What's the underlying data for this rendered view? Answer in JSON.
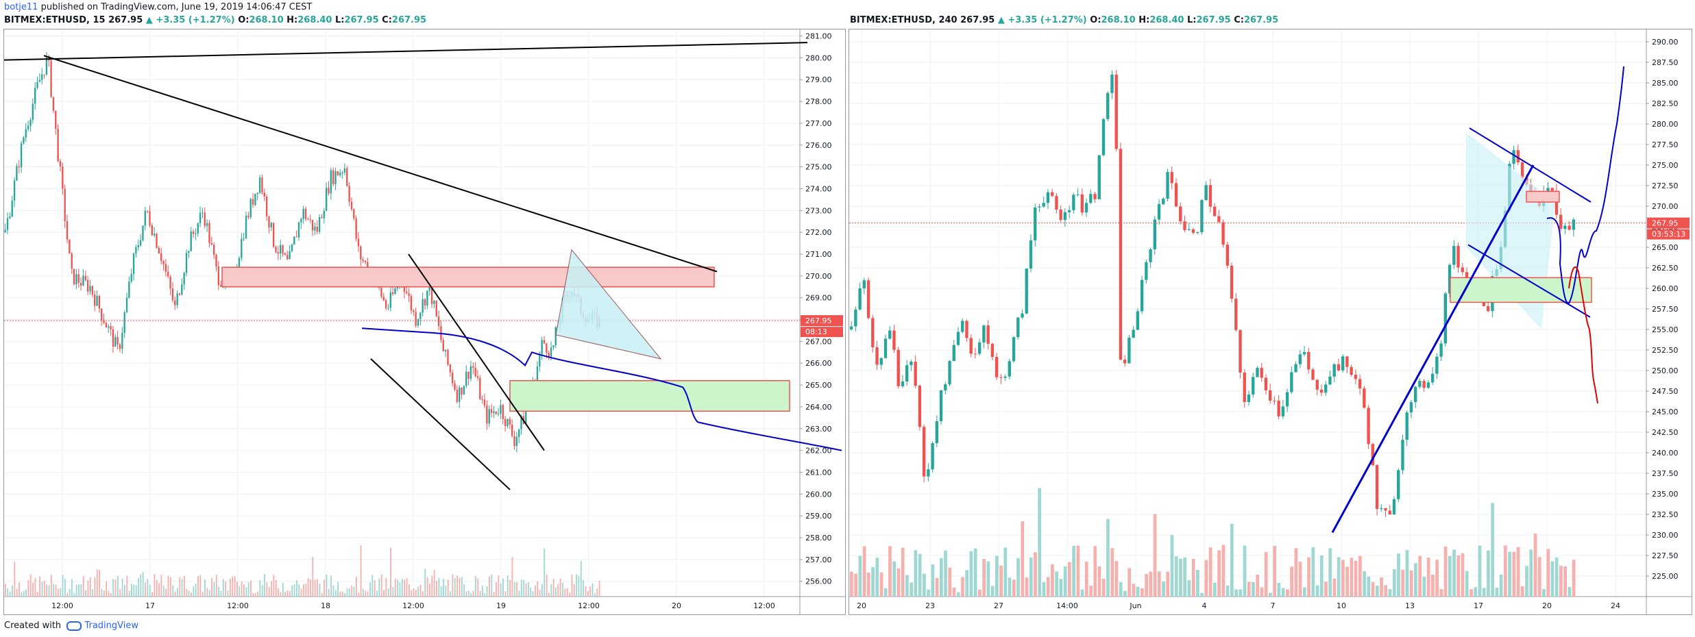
{
  "header": {
    "author": "botje11",
    "published_text": " published on TradingView.com, June 19, 2019 14:06:47 CEST"
  },
  "footer": {
    "created_with": "Created with",
    "brand": "TradingView"
  },
  "colors": {
    "up": "#26a69a",
    "down": "#ef5350",
    "trend": "#000000",
    "path_blue": "#0000cc",
    "path_red": "#e00000",
    "resist_fill": "#f8c9c9",
    "support_fill": "#ccf5cc",
    "triangle_fill": "#c8f0f6",
    "price_tag": "#ef5350"
  },
  "legend_left": {
    "symbol": "BITMEX:ETHUSD, 15",
    "last": "267.95",
    "arrow": "▲",
    "change": "+3.35 (+1.27%)",
    "o_label": "O:",
    "o": "268.10",
    "h_label": "H:",
    "h": "268.40",
    "l_label": "L:",
    "l": "267.95",
    "c_label": "C:",
    "c": "267.95"
  },
  "legend_right": {
    "symbol": "BITMEX:ETHUSD, 240",
    "last": "267.95",
    "arrow": "▲",
    "change": "+3.35 (+1.27%)",
    "o_label": "O:",
    "o": "268.10",
    "h_label": "H:",
    "h": "268.40",
    "l_label": "L:",
    "l": "267.95",
    "c_label": "C:",
    "c": "267.95"
  },
  "chart_data": [
    {
      "type": "candlestick",
      "symbol": "BITMEX:ETHUSD",
      "interval": "15",
      "ylim": [
        255.3,
        281.3
      ],
      "y_ticks": [
        "256.00",
        "257.00",
        "258.00",
        "259.00",
        "260.00",
        "261.00",
        "262.00",
        "263.00",
        "264.00",
        "265.00",
        "266.00",
        "267.00",
        "268.00",
        "269.00",
        "270.00",
        "271.00",
        "272.00",
        "273.00",
        "274.00",
        "275.00",
        "276.00",
        "277.00",
        "278.00",
        "279.00",
        "280.00",
        "281.00"
      ],
      "x_ticks": [
        "12:00",
        "17",
        "12:00",
        "18",
        "12:00",
        "19",
        "12:00",
        "20",
        "12:00"
      ],
      "last_price": "267.95",
      "countdown": "08:13",
      "price_path": [
        [
          0,
          272.0
        ],
        [
          8,
          276.5
        ],
        [
          14,
          278.8
        ],
        [
          18,
          280.0
        ],
        [
          22,
          276.0
        ],
        [
          28,
          270.0
        ],
        [
          36,
          269.5
        ],
        [
          42,
          268.0
        ],
        [
          48,
          266.5
        ],
        [
          54,
          270.5
        ],
        [
          60,
          273.0
        ],
        [
          66,
          271.0
        ],
        [
          72,
          268.5
        ],
        [
          78,
          271.5
        ],
        [
          84,
          273.0
        ],
        [
          90,
          270.0
        ],
        [
          96,
          269.5
        ],
        [
          102,
          272.5
        ],
        [
          108,
          274.5
        ],
        [
          114,
          271.5
        ],
        [
          120,
          270.5
        ],
        [
          126,
          273.0
        ],
        [
          132,
          272.0
        ],
        [
          138,
          274.5
        ],
        [
          144,
          275.0
        ],
        [
          150,
          271.0
        ],
        [
          156,
          270.0
        ],
        [
          162,
          268.5
        ],
        [
          168,
          270.0
        ],
        [
          174,
          268.0
        ],
        [
          180,
          269.5
        ],
        [
          186,
          266.5
        ],
        [
          192,
          264.5
        ],
        [
          198,
          266.0
        ],
        [
          204,
          263.5
        ],
        [
          210,
          264.0
        ],
        [
          216,
          262.5
        ],
        [
          220,
          263.5
        ],
        [
          224,
          265.0
        ],
        [
          228,
          267.0
        ],
        [
          232,
          266.5
        ],
        [
          236,
          268.5
        ],
        [
          240,
          269.5
        ],
        [
          244,
          268.5
        ],
        [
          248,
          268.0
        ],
        [
          252,
          267.9
        ]
      ],
      "volume_profile": "low bars along bottom, spike near 12:00 of day 16",
      "annotations": {
        "trendlines": 4,
        "resistance_zone": [
          269.5,
          270.5
        ],
        "support_zone": [
          263.8,
          265.2
        ],
        "triangle": true,
        "projection": "blue"
      }
    },
    {
      "type": "candlestick",
      "symbol": "BITMEX:ETHUSD",
      "interval": "240",
      "ylim": [
        222.5,
        291.5
      ],
      "y_ticks": [
        "225.00",
        "227.50",
        "230.00",
        "232.50",
        "235.00",
        "237.50",
        "240.00",
        "242.50",
        "245.00",
        "247.50",
        "250.00",
        "252.50",
        "255.00",
        "257.50",
        "260.00",
        "262.50",
        "265.00",
        "267.50",
        "270.00",
        "272.50",
        "275.00",
        "277.50",
        "280.00",
        "282.50",
        "285.00",
        "287.50",
        "290.00"
      ],
      "x_ticks": [
        "20",
        "23",
        "27",
        "14:00",
        "Jun",
        "4",
        "7",
        "10",
        "13",
        "17",
        "20",
        "24"
      ],
      "last_price": "267.95",
      "countdown": "03:53:13",
      "price_path": [
        [
          0,
          255
        ],
        [
          10,
          262
        ],
        [
          20,
          250
        ],
        [
          30,
          255
        ],
        [
          40,
          248
        ],
        [
          50,
          252
        ],
        [
          60,
          236
        ],
        [
          70,
          245
        ],
        [
          80,
          250
        ],
        [
          90,
          256
        ],
        [
          100,
          252
        ],
        [
          110,
          255
        ],
        [
          120,
          248
        ],
        [
          130,
          252
        ],
        [
          140,
          258
        ],
        [
          150,
          270
        ],
        [
          160,
          272
        ],
        [
          170,
          268
        ],
        [
          180,
          271
        ],
        [
          190,
          270
        ],
        [
          200,
          272
        ],
        [
          210,
          285
        ],
        [
          215,
          287
        ],
        [
          220,
          250
        ],
        [
          230,
          255
        ],
        [
          240,
          262
        ],
        [
          250,
          270
        ],
        [
          260,
          274
        ],
        [
          270,
          268
        ],
        [
          280,
          266
        ],
        [
          290,
          272
        ],
        [
          300,
          268
        ],
        [
          310,
          260
        ],
        [
          320,
          246
        ],
        [
          330,
          250
        ],
        [
          340,
          248
        ],
        [
          350,
          245
        ],
        [
          360,
          250
        ],
        [
          370,
          252
        ],
        [
          380,
          247
        ],
        [
          390,
          250
        ],
        [
          400,
          251
        ],
        [
          410,
          250
        ],
        [
          420,
          245
        ],
        [
          430,
          233
        ],
        [
          440,
          232
        ],
        [
          450,
          242
        ],
        [
          460,
          247
        ],
        [
          470,
          249
        ],
        [
          480,
          252
        ],
        [
          490,
          265
        ],
        [
          500,
          262
        ],
        [
          510,
          260
        ],
        [
          520,
          258
        ],
        [
          530,
          265
        ],
        [
          540,
          277
        ],
        [
          550,
          272
        ],
        [
          560,
          270
        ],
        [
          570,
          273
        ],
        [
          580,
          267
        ],
        [
          590,
          268
        ]
      ],
      "annotations": {
        "support_trendline": true,
        "wedge": true,
        "support_zone": [
          258.5,
          261.5
        ],
        "resistance_zone": [
          270.5,
          272
        ],
        "projection_blue": "up to 285",
        "projection_red": "down to 245"
      }
    }
  ]
}
